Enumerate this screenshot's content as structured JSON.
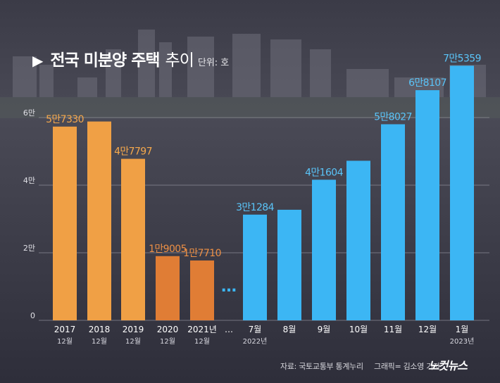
{
  "title": {
    "bold": "전국  미분양 주택",
    "light": "추이",
    "unit": "단위: 호"
  },
  "source": {
    "text": "자료: 국토교통부 통계누리",
    "graphic": "그래픽= 김소영 기자"
  },
  "logo": "노컷뉴스",
  "colors": {
    "background": "#30303c",
    "orange": "#f0a045",
    "dark_orange": "#e07d35",
    "blue": "#3cb6f4",
    "grid": "#8a8a96",
    "text": "#ffffff"
  },
  "chart_data": {
    "type": "bar",
    "title": "전국  미분양 주택 추이",
    "unit": "단위: 호",
    "ylim": [
      0,
      60000
    ],
    "yticks": [
      {
        "value": 0,
        "label": "0"
      },
      {
        "value": 20000,
        "label": "2만"
      },
      {
        "value": 40000,
        "label": "4만"
      },
      {
        "value": 60000,
        "label": "6만"
      }
    ],
    "break_label": "…",
    "categories": [
      {
        "label": "2017",
        "sublabel": "12월",
        "value": 57330,
        "data_label": "5만7330",
        "color": "orange"
      },
      {
        "label": "2018",
        "sublabel": "12월",
        "value": 58838,
        "data_label": "",
        "color": "orange"
      },
      {
        "label": "2019",
        "sublabel": "12월",
        "value": 47797,
        "data_label": "4만7797",
        "color": "orange"
      },
      {
        "label": "2020",
        "sublabel": "12월",
        "value": 19005,
        "data_label": "1만9005",
        "color": "dark_orange"
      },
      {
        "label": "2021년",
        "sublabel": "12월",
        "value": 17710,
        "data_label": "1만7710",
        "color": "dark_orange"
      },
      {
        "label": "7월",
        "sublabel": "2022년",
        "value": 31284,
        "data_label": "3만1284",
        "color": "blue"
      },
      {
        "label": "8월",
        "sublabel": "",
        "value": 32722,
        "data_label": "",
        "color": "blue"
      },
      {
        "label": "9월",
        "sublabel": "",
        "value": 41604,
        "data_label": "4만1604",
        "color": "blue"
      },
      {
        "label": "10월",
        "sublabel": "",
        "value": 47217,
        "data_label": "",
        "color": "blue"
      },
      {
        "label": "11월",
        "sublabel": "",
        "value": 58027,
        "data_label": "5만8027",
        "color": "blue"
      },
      {
        "label": "12월",
        "sublabel": "",
        "value": 68107,
        "data_label": "6만8107",
        "color": "blue"
      },
      {
        "label": "1월",
        "sublabel": "2023년",
        "value": 75359,
        "data_label": "7만5359",
        "color": "blue"
      }
    ]
  }
}
